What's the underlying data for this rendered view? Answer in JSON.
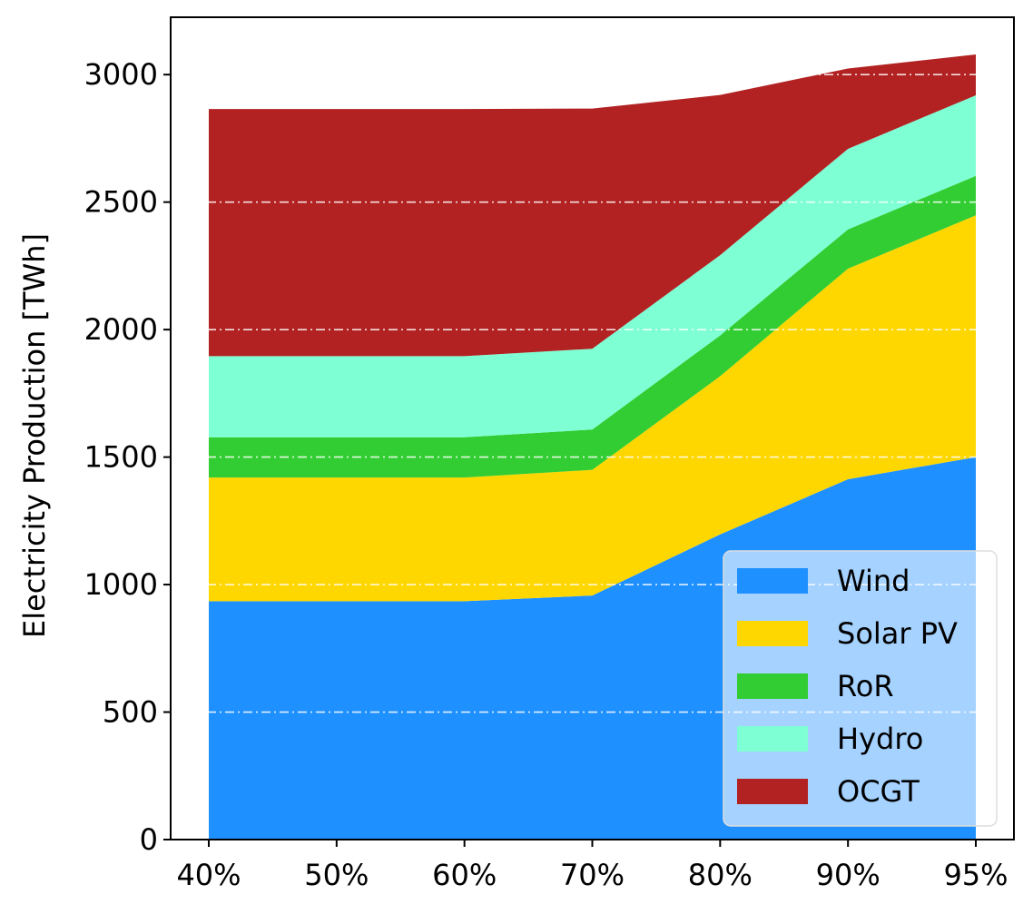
{
  "chart_data": {
    "type": "area",
    "stacked": true,
    "categories": [
      "40%",
      "50%",
      "60%",
      "70%",
      "80%",
      "90%",
      "95%"
    ],
    "series": [
      {
        "name": "Wind",
        "color": "#1e90ff",
        "values": [
          935,
          935,
          935,
          957,
          1197,
          1413,
          1500
        ]
      },
      {
        "name": "Solar PV",
        "color": "#ffd700",
        "values": [
          485,
          485,
          485,
          493,
          620,
          826,
          948
        ]
      },
      {
        "name": "RoR",
        "color": "#32cd32",
        "values": [
          158,
          158,
          158,
          158,
          160,
          154,
          155
        ]
      },
      {
        "name": "Hydro",
        "color": "#7fffd4",
        "values": [
          318,
          318,
          318,
          317,
          315,
          316,
          316
        ]
      },
      {
        "name": "OCGT",
        "color": "#b22222",
        "values": [
          969,
          969,
          969,
          942,
          628,
          315,
          160
        ]
      }
    ],
    "ylabel": "Electricity Production [TWh]",
    "xlabel": "",
    "title": "",
    "ylim": [
      0,
      3225
    ],
    "yticks": [
      0,
      500,
      1000,
      1500,
      2000,
      2500,
      3000
    ],
    "grid": "y-dashdot-white",
    "legend_position": "lower-right"
  }
}
